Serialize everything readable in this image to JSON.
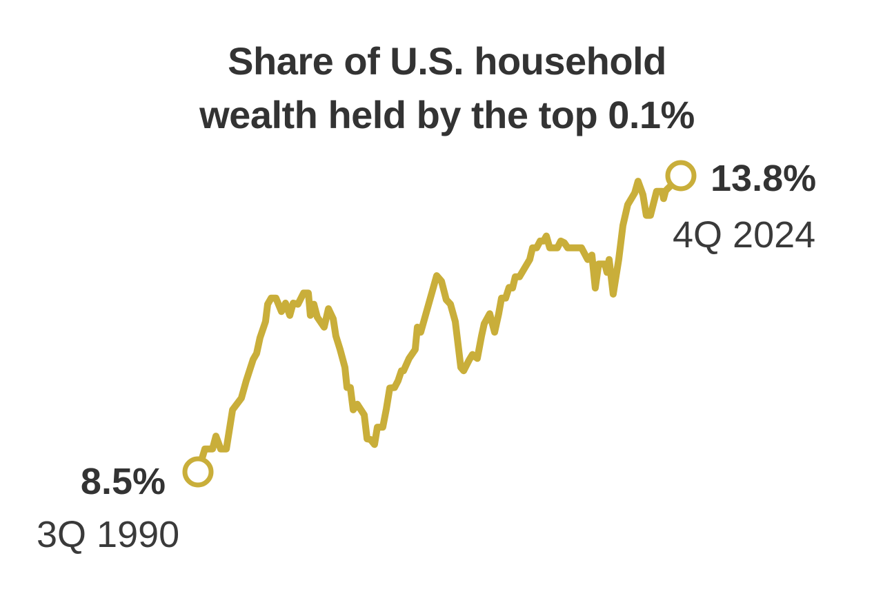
{
  "chart_data": {
    "type": "line",
    "title_lines": [
      "Share of U.S. household",
      "wealth held by the top 0.1%"
    ],
    "xlabel": "",
    "ylabel": "",
    "grid": false,
    "line_color": "#c9ae3a",
    "text_color": "#333333",
    "xlim": [
      1990.5,
      2024.75
    ],
    "series": [
      {
        "points": [
          [
            1990.5,
            8.5
          ],
          [
            1990.99,
            8.91
          ],
          [
            1991.53,
            8.91
          ],
          [
            1991.77,
            9.14
          ],
          [
            1992.11,
            8.91
          ],
          [
            1992.51,
            8.91
          ],
          [
            1992.95,
            9.61
          ],
          [
            1993.58,
            9.82
          ],
          [
            1993.92,
            10.13
          ],
          [
            1994.41,
            10.51
          ],
          [
            1994.66,
            10.62
          ],
          [
            1994.9,
            10.9
          ],
          [
            1995.29,
            11.19
          ],
          [
            1995.44,
            11.5
          ],
          [
            1995.69,
            11.61
          ],
          [
            1996.03,
            11.61
          ],
          [
            1996.42,
            11.37
          ],
          [
            1996.71,
            11.52
          ],
          [
            1997.01,
            11.3
          ],
          [
            1997.25,
            11.52
          ],
          [
            1997.59,
            11.5
          ],
          [
            1997.99,
            11.7
          ],
          [
            1998.33,
            11.7
          ],
          [
            1998.47,
            11.3
          ],
          [
            1998.72,
            11.5
          ],
          [
            1998.96,
            11.27
          ],
          [
            1999.45,
            11.09
          ],
          [
            1999.75,
            11.42
          ],
          [
            2000.09,
            11.24
          ],
          [
            2000.28,
            10.93
          ],
          [
            2000.58,
            10.69
          ],
          [
            2000.92,
            10.37
          ],
          [
            2001.07,
            10.01
          ],
          [
            2001.31,
            10.01
          ],
          [
            2001.51,
            9.61
          ],
          [
            2001.8,
            9.71
          ],
          [
            2002.29,
            9.52
          ],
          [
            2002.49,
            9.09
          ],
          [
            2002.73,
            9.08
          ],
          [
            2003.02,
            8.99
          ],
          [
            2003.22,
            9.3
          ],
          [
            2003.61,
            9.3
          ],
          [
            2003.86,
            9.63
          ],
          [
            2004.1,
            10.0
          ],
          [
            2004.44,
            10.01
          ],
          [
            2004.69,
            10.13
          ],
          [
            2004.93,
            10.31
          ],
          [
            2005.08,
            10.31
          ],
          [
            2005.47,
            10.53
          ],
          [
            2005.91,
            10.69
          ],
          [
            2006.06,
            11.09
          ],
          [
            2006.3,
            11.0
          ],
          [
            2007.43,
            12.01
          ],
          [
            2007.77,
            11.91
          ],
          [
            2008.11,
            11.58
          ],
          [
            2008.41,
            11.5
          ],
          [
            2008.75,
            11.19
          ],
          [
            2008.99,
            10.69
          ],
          [
            2009.14,
            10.37
          ],
          [
            2009.34,
            10.31
          ],
          [
            2009.73,
            10.5
          ],
          [
            2009.97,
            10.6
          ],
          [
            2010.31,
            10.53
          ],
          [
            2010.61,
            10.93
          ],
          [
            2010.8,
            11.15
          ],
          [
            2011.19,
            11.33
          ],
          [
            2011.54,
            11.0
          ],
          [
            2011.83,
            11.33
          ],
          [
            2012.03,
            11.61
          ],
          [
            2012.32,
            11.61
          ],
          [
            2012.56,
            11.8
          ],
          [
            2012.81,
            11.79
          ],
          [
            2013.0,
            11.99
          ],
          [
            2013.3,
            11.99
          ],
          [
            2014.03,
            12.3
          ],
          [
            2014.23,
            12.51
          ],
          [
            2014.52,
            12.51
          ],
          [
            2014.77,
            12.63
          ],
          [
            2015.01,
            12.63
          ],
          [
            2015.21,
            12.72
          ],
          [
            2015.45,
            12.51
          ],
          [
            2015.99,
            12.51
          ],
          [
            2016.23,
            12.63
          ],
          [
            2016.48,
            12.6
          ],
          [
            2016.72,
            12.51
          ],
          [
            2017.7,
            12.51
          ],
          [
            2018.14,
            12.3
          ],
          [
            2018.44,
            12.38
          ],
          [
            2018.68,
            11.79
          ],
          [
            2018.92,
            12.22
          ],
          [
            2019.36,
            12.22
          ],
          [
            2019.51,
            12.07
          ],
          [
            2019.66,
            12.3
          ],
          [
            2019.95,
            11.68
          ],
          [
            2020.34,
            12.3
          ],
          [
            2020.64,
            12.91
          ],
          [
            2020.98,
            13.28
          ],
          [
            2021.47,
            13.49
          ],
          [
            2021.71,
            13.7
          ],
          [
            2022.06,
            13.46
          ],
          [
            2022.3,
            13.09
          ],
          [
            2022.59,
            13.09
          ],
          [
            2023.03,
            13.52
          ],
          [
            2023.43,
            13.52
          ],
          [
            2023.52,
            13.39
          ],
          [
            2023.67,
            13.53
          ],
          [
            2023.91,
            13.59
          ],
          [
            2024.75,
            13.8
          ]
        ]
      }
    ],
    "annotations": {
      "start": {
        "value_label": "8.5%",
        "date_label": "3Q 1990",
        "x": 1990.5,
        "y": 8.5
      },
      "end": {
        "value_label": "13.8%",
        "date_label": "4Q 2024",
        "x": 2024.75,
        "y": 13.8
      }
    }
  }
}
